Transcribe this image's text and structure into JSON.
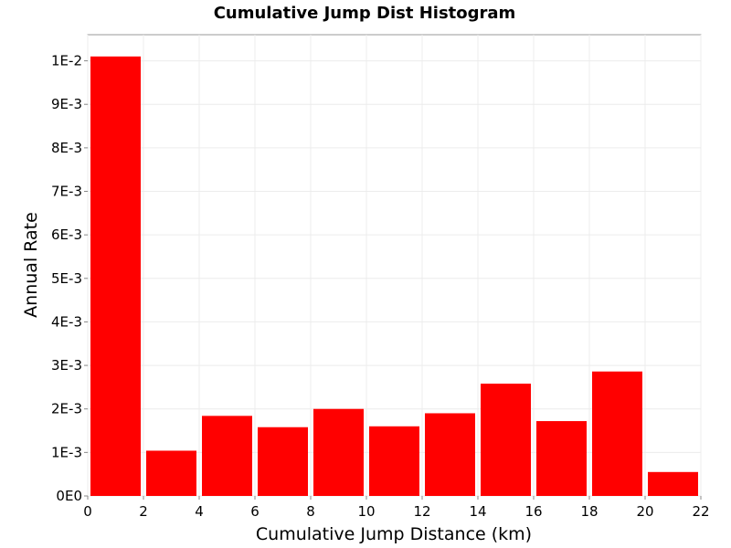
{
  "chart_data": {
    "type": "bar",
    "title": "Cumulative Jump Dist Histogram",
    "xlabel": "Cumulative Jump Distance (km)",
    "ylabel": "Annual Rate",
    "xlim": [
      0,
      22
    ],
    "ylim": [
      0,
      0.0106
    ],
    "x_ticks": [
      "0",
      "2",
      "4",
      "6",
      "8",
      "10",
      "12",
      "14",
      "16",
      "18",
      "20",
      "22"
    ],
    "y_ticks": [
      "0E0",
      "1E-3",
      "2E-3",
      "3E-3",
      "4E-3",
      "5E-3",
      "6E-3",
      "7E-3",
      "8E-3",
      "9E-3",
      "1E-2"
    ],
    "bins": [
      {
        "x0": 0,
        "x1": 2,
        "value": 0.0101
      },
      {
        "x0": 2,
        "x1": 4,
        "value": 0.00104
      },
      {
        "x0": 4,
        "x1": 6,
        "value": 0.00184
      },
      {
        "x0": 6,
        "x1": 8,
        "value": 0.00158
      },
      {
        "x0": 8,
        "x1": 10,
        "value": 0.002
      },
      {
        "x0": 10,
        "x1": 12,
        "value": 0.0016
      },
      {
        "x0": 12,
        "x1": 14,
        "value": 0.0019
      },
      {
        "x0": 14,
        "x1": 16,
        "value": 0.00258
      },
      {
        "x0": 16,
        "x1": 18,
        "value": 0.00172
      },
      {
        "x0": 18,
        "x1": 20,
        "value": 0.00286
      },
      {
        "x0": 20,
        "x1": 22,
        "value": 0.00055
      }
    ],
    "bar_color": "#ff0000",
    "grid": true,
    "grid_color": "#ececec"
  }
}
